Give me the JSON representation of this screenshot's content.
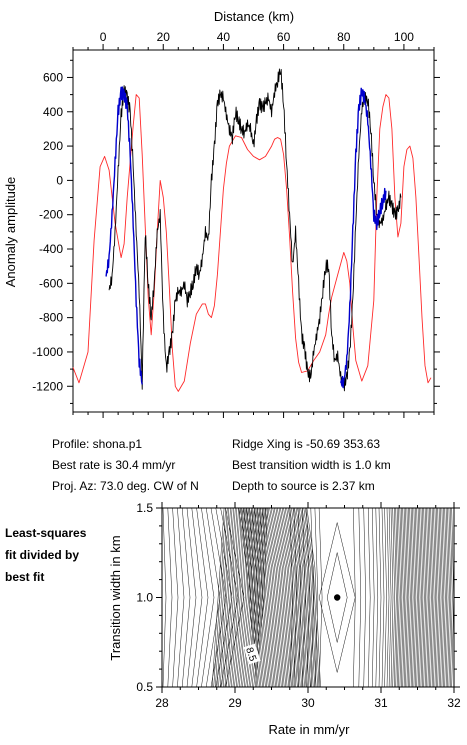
{
  "chart_data": [
    {
      "type": "line",
      "xlabel_top": "Distance (km)",
      "ylabel": "Anomaly amplitude",
      "x_ticks": [
        "0",
        "20",
        "40",
        "60",
        "80",
        "100"
      ],
      "y_ticks": [
        "600",
        "400",
        "200",
        "0",
        "-200",
        "-400",
        "-600",
        "-800",
        "-1000",
        "-1200"
      ],
      "xlim": [
        -10,
        110
      ],
      "ylim": [
        -1350,
        760
      ],
      "grid": false,
      "colors": {
        "model": "#ff2a2a",
        "observed": "#000000",
        "fit_window": "#0000cc"
      },
      "series": [
        {
          "role": "model",
          "x": [
            -10,
            -8,
            -5,
            -3,
            -1,
            0.5,
            2,
            4,
            6,
            7,
            8,
            10,
            11,
            12,
            13,
            15,
            16,
            17,
            18,
            19,
            20,
            21,
            22,
            23,
            24,
            25,
            27,
            29,
            31,
            33,
            34,
            35,
            36,
            37,
            38,
            39,
            40,
            41,
            42,
            44,
            46,
            48,
            50,
            52,
            54,
            56,
            57,
            58,
            59,
            60,
            61,
            62,
            63,
            64,
            65,
            66,
            68,
            70,
            72,
            74,
            75,
            76,
            78,
            80,
            81,
            82,
            83,
            84,
            86,
            88,
            90,
            91,
            92,
            93,
            94,
            95,
            96,
            97,
            98,
            99,
            100,
            101,
            102,
            103,
            104,
            105,
            106,
            107,
            108,
            109
          ],
          "y": [
            -1090,
            -1180,
            -1000,
            -350,
            80,
            140,
            60,
            -250,
            -450,
            -370,
            -100,
            320,
            500,
            480,
            150,
            -680,
            -900,
            -650,
            -300,
            0,
            -100,
            -300,
            -620,
            -980,
            -1200,
            -1230,
            -1170,
            -950,
            -780,
            -720,
            -720,
            -780,
            -800,
            -730,
            -550,
            -300,
            -50,
            100,
            200,
            260,
            250,
            180,
            140,
            120,
            140,
            200,
            240,
            250,
            240,
            150,
            -50,
            -330,
            -650,
            -920,
            -1060,
            -1120,
            -1110,
            -1050,
            -1000,
            -900,
            -780,
            -680,
            -550,
            -420,
            -470,
            -600,
            -850,
            -1050,
            -1170,
            -1080,
            -700,
            -100,
            300,
            430,
            500,
            480,
            300,
            -100,
            -330,
            -250,
            80,
            180,
            200,
            130,
            -100,
            -450,
            -800,
            -1080,
            -1180,
            -1150
          ]
        },
        {
          "role": "observed",
          "x": [
            2,
            3,
            4,
            5,
            6,
            7,
            8,
            9,
            10,
            11,
            12,
            13,
            14,
            15,
            16,
            17,
            18,
            19,
            20,
            21,
            22,
            23,
            24,
            25,
            26,
            27,
            28,
            29,
            30,
            31,
            32,
            33,
            34,
            35,
            36,
            37,
            38,
            39,
            40,
            41,
            42,
            43,
            44,
            45,
            46,
            47,
            48,
            49,
            50,
            51,
            52,
            53,
            54,
            55,
            56,
            57,
            58,
            59,
            60,
            61,
            62,
            63,
            64,
            65,
            66,
            67,
            68,
            69,
            70,
            71,
            72,
            73,
            74,
            75,
            76,
            77,
            78,
            79,
            80,
            81,
            82,
            83,
            84,
            85,
            86,
            87,
            88,
            89,
            90,
            91,
            92,
            93,
            94,
            95,
            96,
            97,
            98,
            99
          ],
          "y": [
            -640,
            -560,
            -300,
            50,
            380,
            520,
            490,
            400,
            80,
            -300,
            -650,
            -1180,
            -300,
            -600,
            -800,
            -600,
            -300,
            -200,
            -800,
            -1100,
            -1000,
            -900,
            -700,
            -650,
            -650,
            -600,
            -700,
            -650,
            -600,
            -500,
            -550,
            -450,
            -300,
            -350,
            0,
            200,
            450,
            500,
            480,
            380,
            300,
            250,
            400,
            350,
            300,
            280,
            330,
            300,
            200,
            350,
            450,
            420,
            450,
            480,
            400,
            520,
            580,
            650,
            450,
            100,
            -200,
            -500,
            -300,
            -600,
            -900,
            -980,
            -1120,
            -1150,
            -1000,
            -900,
            -800,
            -650,
            -500,
            -500,
            -900,
            -1050,
            -1020,
            -1150,
            -1200,
            -1150,
            -1000,
            -700,
            -250,
            150,
            420,
            480,
            470,
            300,
            0,
            -200,
            -250,
            -230,
            -150,
            -100,
            -150,
            -200,
            -180,
            -100
          ]
        },
        {
          "role": "fit-window-left",
          "x": [
            1,
            2,
            3,
            4,
            5,
            6,
            7,
            8,
            9,
            10,
            11,
            12,
            13
          ],
          "y": [
            -560,
            -450,
            -200,
            100,
            400,
            510,
            500,
            430,
            150,
            -250,
            -700,
            -1050,
            -1190
          ]
        },
        {
          "role": "fit-window-right",
          "x": [
            79,
            80,
            81,
            82,
            83,
            84,
            85,
            86,
            87,
            88,
            89,
            90,
            91,
            92,
            93,
            94
          ],
          "y": [
            -1180,
            -1170,
            -1050,
            -750,
            -300,
            150,
            420,
            520,
            470,
            350,
            100,
            -200,
            -250,
            -180,
            -120,
            -60
          ]
        }
      ]
    },
    {
      "type": "contour",
      "xlabel": "Rate in mm/yr",
      "ylabel": "Transition width in km",
      "x_ticks": [
        "28",
        "29",
        "30",
        "31",
        "32"
      ],
      "y_ticks": [
        "0.5",
        "1.0",
        "1.5"
      ],
      "xlim": [
        28,
        32
      ],
      "ylim": [
        0.5,
        1.5
      ],
      "best_fit": {
        "x": 30.4,
        "y": 1.0
      },
      "contour_label": "8.5",
      "note": [
        "Least-squares",
        "fit divided by",
        "best fit"
      ]
    }
  ],
  "info": {
    "profile": "Profile: shona.p1",
    "ridge": "Ridge Xing is -50.69 353.63",
    "rate": "Best rate is 30.4 mm/yr",
    "width": "Best transition width is 1.0 km",
    "azimuth": "Proj. Az: 73.0 deg. CW of N",
    "depth": "Depth to source is   2.37 km"
  }
}
